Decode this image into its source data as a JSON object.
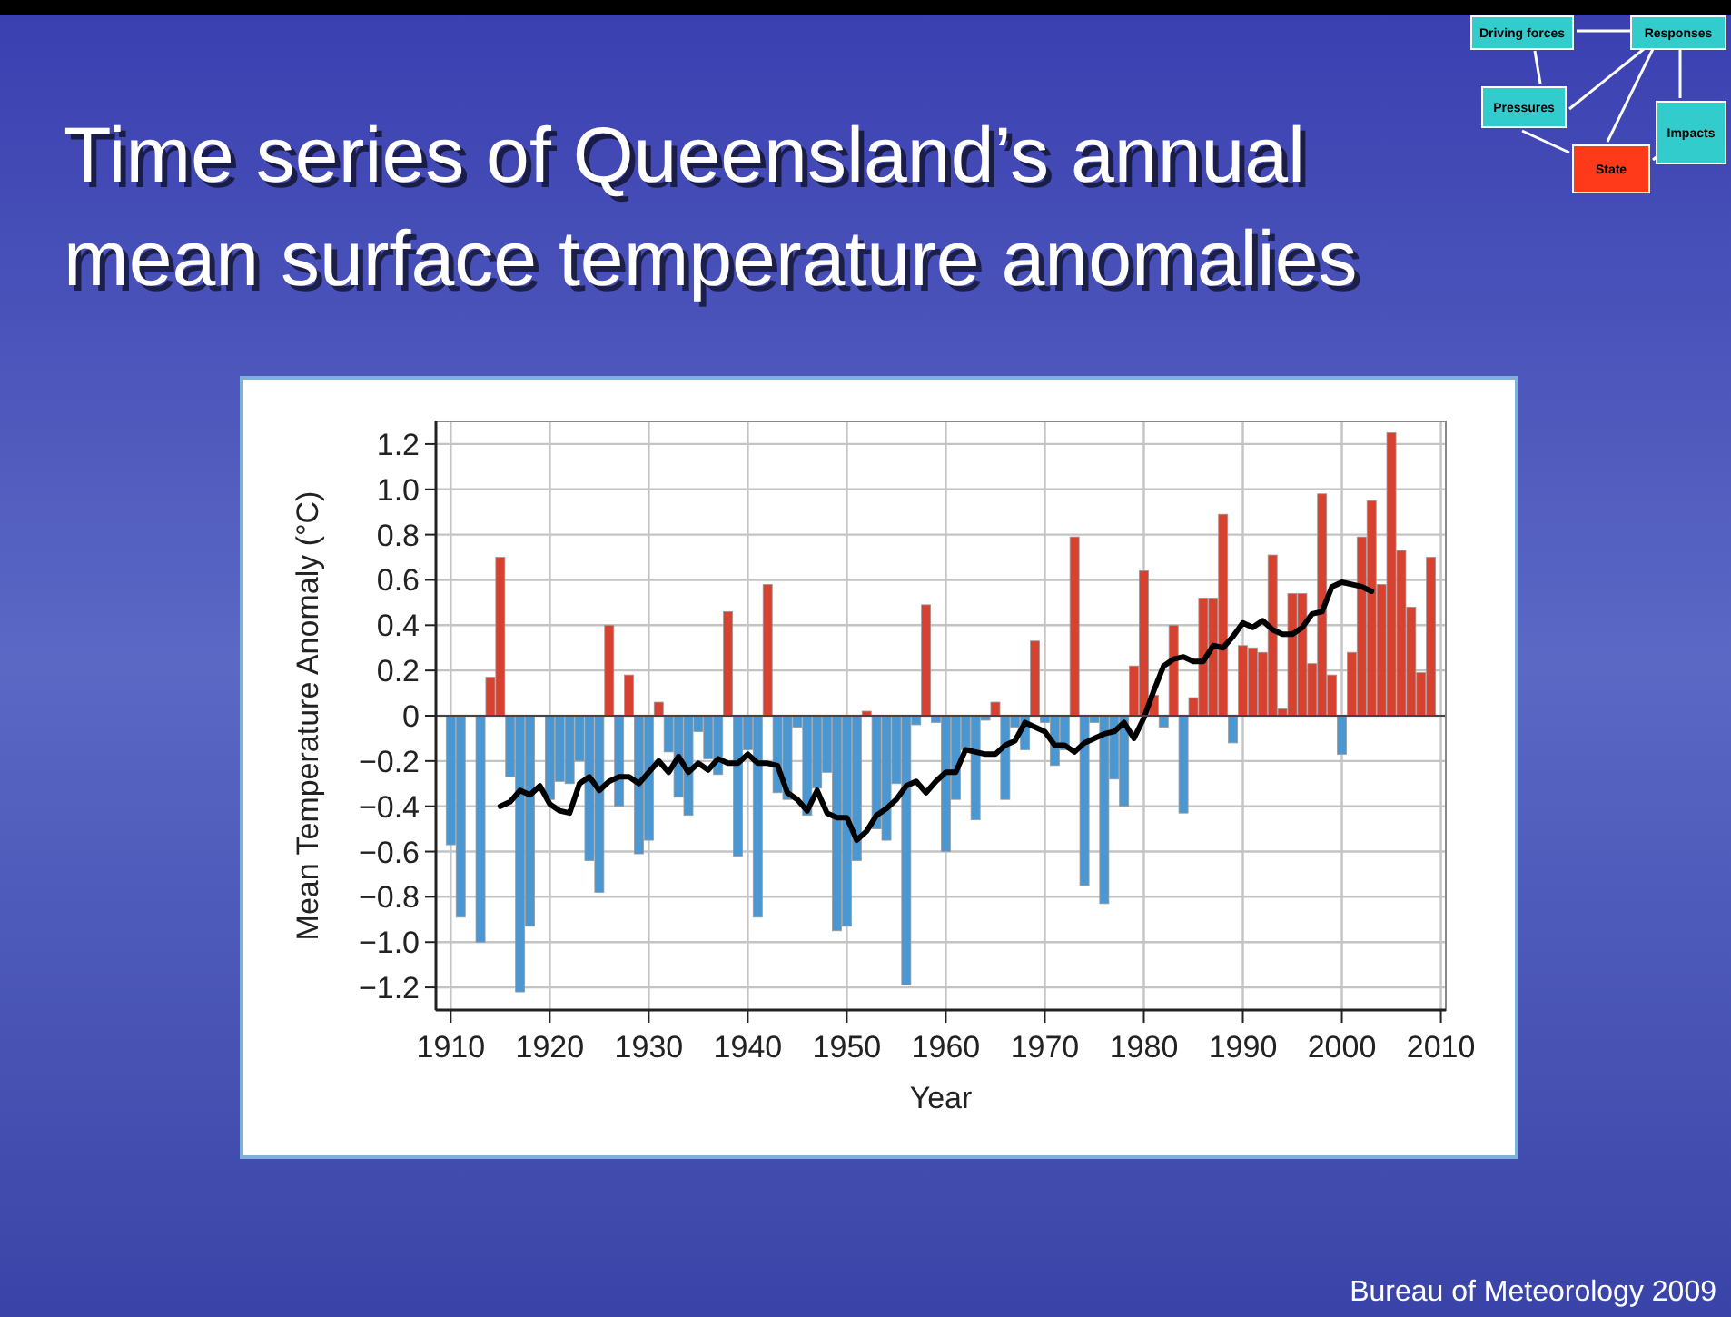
{
  "chart_data": {
    "type": "bar",
    "title": "Time series of Queensland’s annual mean surface temperature anomalies",
    "xlabel": "Year",
    "ylabel": "Mean Temperature Anomaly (°C)",
    "annotations": [
      "Bureau of Meteorology 2009",
      "Driving forces",
      "Responses",
      "Pressures",
      "State",
      "Impacts"
    ],
    "xlim": [
      1908.5,
      2010.5
    ],
    "xticks": [
      1910,
      1920,
      1930,
      1940,
      1950,
      1960,
      1970,
      1980,
      1990,
      2000,
      2010
    ],
    "ylim": [
      -1.3,
      1.3
    ],
    "yticks": [
      {
        "value": -1.2,
        "label": "−1.2"
      },
      {
        "value": -1.0,
        "label": "−1.0"
      },
      {
        "value": -0.8,
        "label": "−0.8"
      },
      {
        "value": -0.6,
        "label": "−0.6"
      },
      {
        "value": -0.4,
        "label": "−0.4"
      },
      {
        "value": -0.2,
        "label": "−0.2"
      },
      0,
      {
        "value": 0.2,
        "label": "0.2"
      },
      {
        "value": 0.4,
        "label": "0.4"
      },
      {
        "value": 0.6,
        "label": "0.6"
      },
      {
        "value": 0.8,
        "label": "0.8"
      },
      {
        "value": 1.0,
        "label": "1.0"
      },
      {
        "value": 1.2,
        "label": "1.2"
      }
    ],
    "grid": true,
    "series": [
      {
        "x": [
          1910,
          1911,
          1913,
          1914,
          1915,
          1916,
          1917,
          1918,
          1920,
          1921,
          1922,
          1923,
          1924,
          1925,
          1926,
          1927,
          1928,
          1929,
          1930,
          1931,
          1932,
          1933,
          1934,
          1935,
          1936,
          1937,
          1938,
          1939,
          1940,
          1941,
          1942,
          1943,
          1944,
          1945,
          1946,
          1947,
          1948,
          1949,
          1950,
          1951,
          1952,
          1953,
          1954,
          1955,
          1956,
          1957,
          1958,
          1959,
          1960,
          1961,
          1962,
          1963,
          1964,
          1965,
          1966,
          1967,
          1968,
          1969,
          1970,
          1971,
          1972,
          1973,
          1974,
          1975,
          1976,
          1977,
          1978,
          1979,
          1980,
          1981,
          1982,
          1983,
          1984,
          1985,
          1986,
          1987,
          1988,
          1989,
          1990,
          1991,
          1992,
          1993,
          1994,
          1995,
          1996,
          1997,
          1998,
          1999,
          2000,
          2001,
          2002,
          2003,
          2004,
          2005,
          2006,
          2007,
          2008,
          2009
        ],
        "values": [
          -0.57,
          -0.89,
          -1.0,
          0.17,
          0.7,
          -0.27,
          -1.22,
          -0.93,
          -0.37,
          -0.29,
          -0.3,
          -0.2,
          -0.64,
          -0.78,
          0.4,
          -0.4,
          0.18,
          -0.61,
          -0.55,
          0.06,
          -0.16,
          -0.36,
          -0.44,
          -0.07,
          -0.19,
          -0.26,
          0.46,
          -0.62,
          -0.15,
          -0.89,
          0.58,
          -0.34,
          -0.37,
          -0.05,
          -0.44,
          -0.32,
          -0.25,
          -0.95,
          -0.93,
          -0.64,
          0.02,
          -0.5,
          -0.55,
          -0.3,
          -1.19,
          -0.04,
          0.49,
          -0.03,
          -0.6,
          -0.37,
          -0.15,
          -0.46,
          -0.02,
          0.06,
          -0.37,
          -0.05,
          -0.15,
          0.33,
          -0.03,
          -0.22,
          -0.15,
          0.79,
          -0.75,
          -0.03,
          -0.83,
          -0.28,
          -0.4,
          0.22,
          0.64,
          0.09,
          -0.05,
          0.4,
          -0.43,
          0.08,
          0.52,
          0.52,
          0.89,
          -0.12,
          0.31,
          0.3,
          0.28,
          0.71,
          0.03,
          0.54,
          0.54,
          0.23,
          0.98,
          0.18,
          -0.17,
          0.28,
          0.79,
          0.95,
          0.58,
          1.25,
          0.73,
          0.48,
          0.19,
          0.7
        ],
        "colors": [
          "#4b97d1",
          "#4b97d1",
          "#4b97d1",
          "#d6422f",
          "#d6422f",
          "#4b97d1",
          "#4b97d1",
          "#4b97d1",
          "#4b97d1",
          "#4b97d1",
          "#4b97d1",
          "#4b97d1",
          "#4b97d1",
          "#4b97d1",
          "#d6422f",
          "#4b97d1",
          "#d6422f",
          "#4b97d1",
          "#4b97d1",
          "#d6422f",
          "#4b97d1",
          "#4b97d1",
          "#4b97d1",
          "#4b97d1",
          "#4b97d1",
          "#4b97d1",
          "#d6422f",
          "#4b97d1",
          "#4b97d1",
          "#4b97d1",
          "#d6422f",
          "#4b97d1",
          "#4b97d1",
          "#4b97d1",
          "#4b97d1",
          "#4b97d1",
          "#4b97d1",
          "#4b97d1",
          "#4b97d1",
          "#4b97d1",
          "#d6422f",
          "#4b97d1",
          "#4b97d1",
          "#4b97d1",
          "#4b97d1",
          "#4b97d1",
          "#d6422f",
          "#4b97d1",
          "#4b97d1",
          "#4b97d1",
          "#4b97d1",
          "#4b97d1",
          "#4b97d1",
          "#d6422f",
          "#4b97d1",
          "#4b97d1",
          "#4b97d1",
          "#d6422f",
          "#4b97d1",
          "#4b97d1",
          "#4b97d1",
          "#d6422f",
          "#4b97d1",
          "#4b97d1",
          "#4b97d1",
          "#4b97d1",
          "#4b97d1",
          "#d6422f",
          "#d6422f",
          "#d6422f",
          "#4b97d1",
          "#d6422f",
          "#4b97d1",
          "#d6422f",
          "#d6422f",
          "#d6422f",
          "#d6422f",
          "#4b97d1",
          "#d6422f",
          "#d6422f",
          "#d6422f",
          "#d6422f",
          "#d6422f",
          "#d6422f",
          "#d6422f",
          "#d6422f",
          "#d6422f",
          "#d6422f",
          "#4b97d1",
          "#d6422f",
          "#d6422f",
          "#d6422f",
          "#d6422f",
          "#d6422f",
          "#d6422f",
          "#d6422f",
          "#d6422f",
          "#d6422f"
        ]
      },
      {
        "type": "line",
        "color": "#000000",
        "x": [
          1915,
          1916,
          1917,
          1918,
          1919,
          1920,
          1921,
          1922,
          1923,
          1924,
          1925,
          1926,
          1927,
          1928,
          1929,
          1930,
          1931,
          1932,
          1933,
          1934,
          1935,
          1936,
          1937,
          1938,
          1939,
          1940,
          1941,
          1942,
          1943,
          1944,
          1945,
          1946,
          1947,
          1948,
          1949,
          1950,
          1951,
          1952,
          1953,
          1954,
          1955,
          1956,
          1957,
          1958,
          1959,
          1960,
          1961,
          1962,
          1963,
          1964,
          1965,
          1966,
          1967,
          1968,
          1969,
          1970,
          1971,
          1972,
          1973,
          1974,
          1975,
          1976,
          1977,
          1978,
          1979,
          1980,
          1981,
          1982,
          1983,
          1984,
          1985,
          1986,
          1987,
          1988,
          1989,
          1990,
          1991,
          1992,
          1993,
          1994,
          1995,
          1996,
          1997,
          1998,
          1999,
          2000,
          2001,
          2002,
          2003
        ],
        "values": [
          -0.4,
          -0.38,
          -0.33,
          -0.35,
          -0.31,
          -0.39,
          -0.42,
          -0.43,
          -0.3,
          -0.27,
          -0.33,
          -0.29,
          -0.27,
          -0.27,
          -0.3,
          -0.25,
          -0.2,
          -0.25,
          -0.18,
          -0.25,
          -0.21,
          -0.24,
          -0.19,
          -0.21,
          -0.21,
          -0.17,
          -0.21,
          -0.21,
          -0.22,
          -0.34,
          -0.37,
          -0.42,
          -0.33,
          -0.43,
          -0.45,
          -0.45,
          -0.55,
          -0.51,
          -0.44,
          -0.41,
          -0.37,
          -0.31,
          -0.29,
          -0.34,
          -0.29,
          -0.25,
          -0.25,
          -0.15,
          -0.16,
          -0.17,
          -0.17,
          -0.13,
          -0.11,
          -0.03,
          -0.05,
          -0.07,
          -0.13,
          -0.13,
          -0.16,
          -0.12,
          -0.1,
          -0.08,
          -0.07,
          -0.03,
          -0.1,
          -0.01,
          0.11,
          0.22,
          0.25,
          0.26,
          0.24,
          0.24,
          0.31,
          0.3,
          0.35,
          0.41,
          0.39,
          0.42,
          0.38,
          0.36,
          0.36,
          0.39,
          0.45,
          0.46,
          0.57,
          0.59,
          0.58,
          0.57,
          0.55
        ]
      }
    ]
  }
}
